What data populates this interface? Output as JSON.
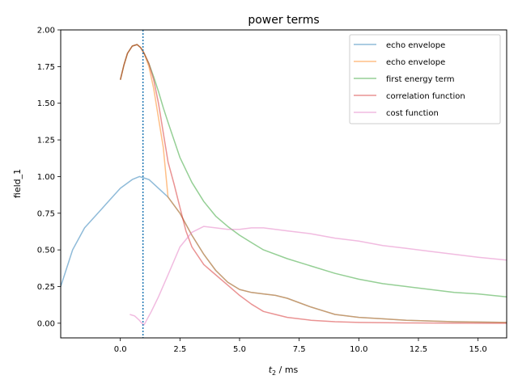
{
  "chart_data": {
    "type": "line",
    "title": "power terms",
    "xlabel_main": "t",
    "xlabel_sub": "2",
    "xlabel_unit": " / ms",
    "ylabel": "field_1",
    "xlim": [
      -2.5,
      16.2
    ],
    "ylim": [
      -0.1,
      2.0
    ],
    "xticks": [
      0.0,
      2.5,
      5.0,
      7.5,
      10.0,
      12.5,
      15.0
    ],
    "xtick_labels": [
      "0.0",
      "2.5",
      "5.0",
      "7.5",
      "10.0",
      "12.5",
      "15.0"
    ],
    "yticks": [
      0.0,
      0.25,
      0.5,
      0.75,
      1.0,
      1.25,
      1.5,
      1.75,
      2.0
    ],
    "ytick_labels": [
      "0.00",
      "0.25",
      "0.50",
      "0.75",
      "1.00",
      "1.25",
      "1.50",
      "1.75",
      "2.00"
    ],
    "grid": false,
    "legend_position": "top-right",
    "vline": {
      "x": 0.95,
      "color": "#1f77b4",
      "style": "dotted"
    },
    "series": [
      {
        "name": "echo envelope",
        "color": "#1f77b4",
        "opacity": 0.5,
        "x": [
          -2.5,
          -2.0,
          -1.5,
          -1.0,
          -0.5,
          0.0,
          0.5,
          0.8,
          1.2,
          1.6,
          2.0,
          2.5,
          3.0,
          3.5,
          4.0,
          4.5,
          5.0,
          5.5,
          6.0,
          6.5,
          7.0,
          7.5,
          8.0,
          9.0,
          10.0,
          11.0,
          12.0,
          13.0,
          14.0,
          15.0,
          16.2
        ],
        "y": [
          0.25,
          0.5,
          0.65,
          0.74,
          0.83,
          0.92,
          0.98,
          1.0,
          0.98,
          0.92,
          0.86,
          0.75,
          0.6,
          0.47,
          0.36,
          0.28,
          0.23,
          0.21,
          0.2,
          0.19,
          0.17,
          0.14,
          0.11,
          0.06,
          0.04,
          0.03,
          0.02,
          0.015,
          0.01,
          0.008,
          0.005
        ]
      },
      {
        "name": "echo envelope",
        "color": "#ff7f0e",
        "opacity": 0.5,
        "x": [
          0.0,
          0.15,
          0.3,
          0.5,
          0.7,
          0.85,
          1.0,
          1.2,
          1.4,
          1.6,
          1.8,
          2.0,
          2.5,
          3.0,
          3.5,
          4.0,
          4.5,
          5.0,
          5.5,
          6.0,
          6.5,
          7.0,
          7.5,
          8.0,
          9.0,
          10.0,
          11.0,
          12.0,
          13.0,
          14.0,
          15.0,
          16.2
        ],
        "y": [
          1.66,
          1.76,
          1.84,
          1.89,
          1.9,
          1.88,
          1.84,
          1.75,
          1.6,
          1.4,
          1.2,
          0.86,
          0.75,
          0.6,
          0.47,
          0.36,
          0.28,
          0.23,
          0.21,
          0.2,
          0.19,
          0.17,
          0.14,
          0.11,
          0.06,
          0.04,
          0.03,
          0.02,
          0.015,
          0.01,
          0.008,
          0.005
        ]
      },
      {
        "name": "first energy term",
        "color": "#2ca02c",
        "opacity": 0.5,
        "x": [
          0.0,
          0.15,
          0.3,
          0.5,
          0.7,
          0.85,
          1.0,
          1.2,
          1.4,
          1.6,
          1.8,
          2.0,
          2.5,
          3.0,
          3.5,
          4.0,
          4.5,
          5.0,
          5.5,
          6.0,
          7.0,
          8.0,
          9.0,
          10.0,
          11.0,
          12.0,
          13.0,
          14.0,
          15.0,
          16.2
        ],
        "y": [
          1.66,
          1.76,
          1.84,
          1.89,
          1.9,
          1.88,
          1.84,
          1.77,
          1.68,
          1.58,
          1.47,
          1.37,
          1.13,
          0.96,
          0.83,
          0.73,
          0.66,
          0.6,
          0.55,
          0.5,
          0.44,
          0.39,
          0.34,
          0.3,
          0.27,
          0.25,
          0.23,
          0.21,
          0.2,
          0.18
        ]
      },
      {
        "name": "correlation function",
        "color": "#d62728",
        "opacity": 0.5,
        "x": [
          0.0,
          0.15,
          0.3,
          0.5,
          0.7,
          0.85,
          1.0,
          1.2,
          1.4,
          1.6,
          1.8,
          2.0,
          2.25,
          2.5,
          2.75,
          3.0,
          3.5,
          4.0,
          4.5,
          5.0,
          5.5,
          6.0,
          6.5,
          7.0,
          8.0,
          9.0,
          10.0,
          12.0,
          14.0,
          16.2
        ],
        "y": [
          1.66,
          1.76,
          1.84,
          1.89,
          1.9,
          1.88,
          1.84,
          1.77,
          1.66,
          1.5,
          1.3,
          1.1,
          0.95,
          0.79,
          0.63,
          0.52,
          0.4,
          0.33,
          0.26,
          0.19,
          0.13,
          0.08,
          0.06,
          0.04,
          0.02,
          0.01,
          0.005,
          0.002,
          0.001,
          0.0
        ]
      },
      {
        "name": "cost function",
        "color": "#e377c2",
        "opacity": 0.5,
        "x": [
          0.4,
          0.6,
          0.8,
          0.9,
          1.0,
          1.1,
          1.3,
          1.6,
          2.0,
          2.5,
          3.0,
          3.5,
          4.0,
          4.5,
          5.0,
          5.5,
          6.0,
          7.0,
          8.0,
          9.0,
          10.0,
          11.0,
          12.0,
          13.0,
          14.0,
          15.0,
          16.2
        ],
        "y": [
          0.06,
          0.05,
          0.02,
          0.0,
          -0.01,
          0.02,
          0.08,
          0.18,
          0.33,
          0.52,
          0.62,
          0.66,
          0.65,
          0.64,
          0.64,
          0.65,
          0.65,
          0.63,
          0.61,
          0.58,
          0.56,
          0.53,
          0.51,
          0.49,
          0.47,
          0.45,
          0.43
        ]
      }
    ]
  }
}
